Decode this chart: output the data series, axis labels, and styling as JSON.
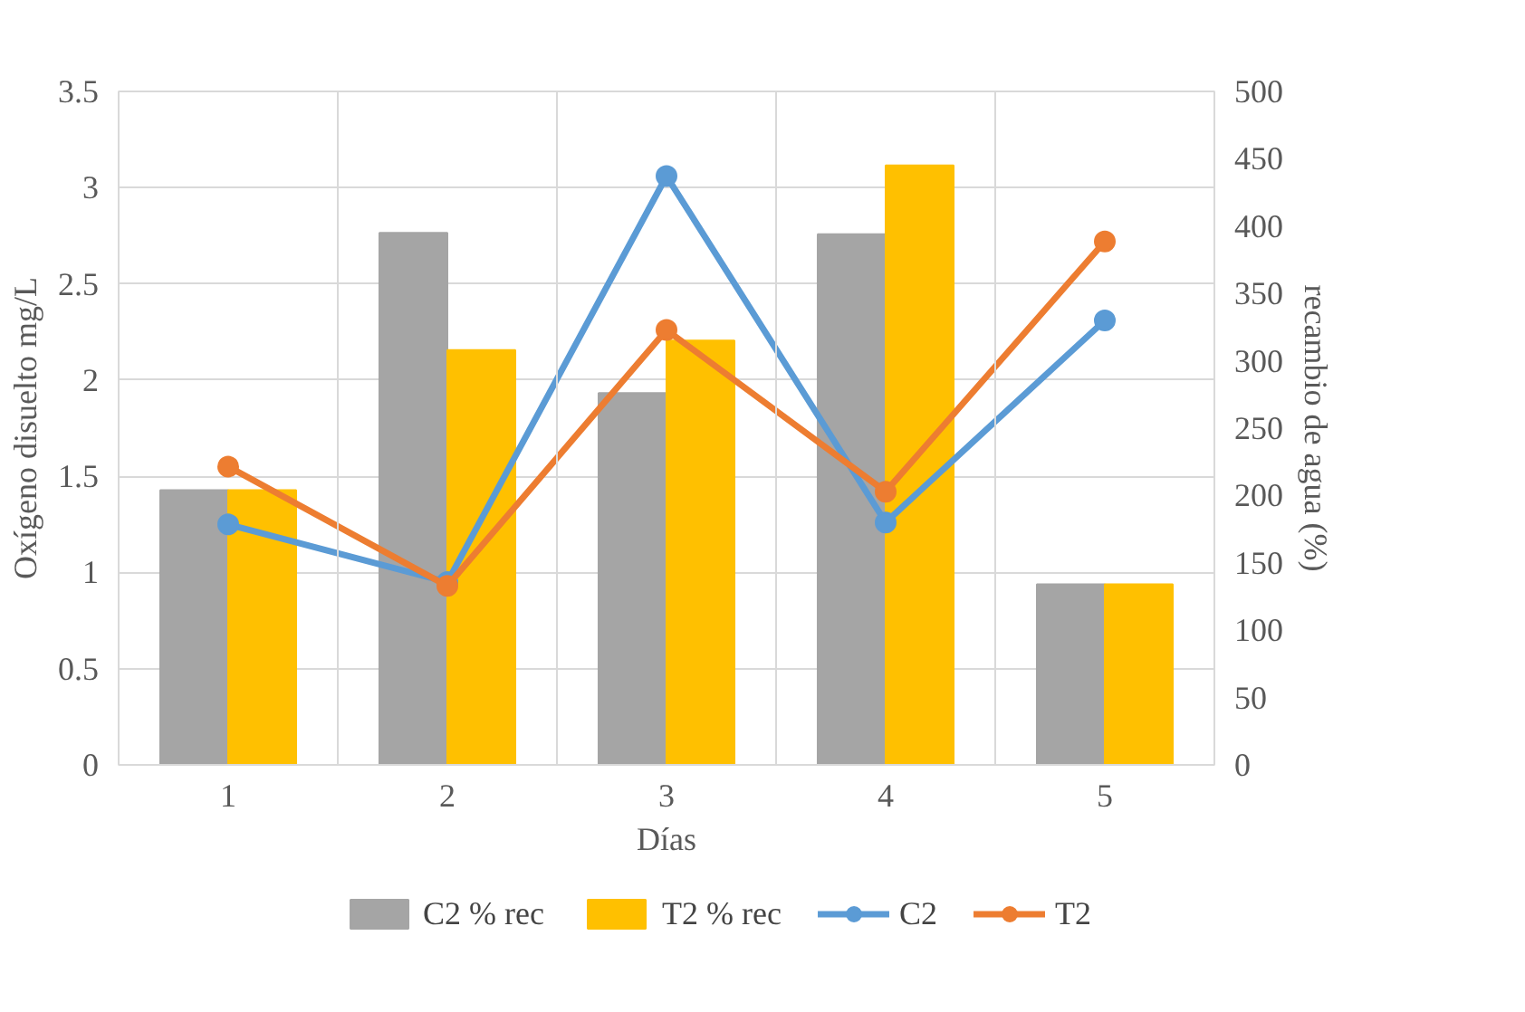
{
  "chart_data": {
    "type": "bar",
    "xlabel": "Días",
    "ylabel": "Oxígeno disuelto mg/L",
    "y2label": "recambio de agua (%)",
    "categories": [
      "1",
      "2",
      "3",
      "4",
      "5"
    ],
    "ylim": [
      0,
      3.5
    ],
    "yticks": [
      0,
      0.5,
      1,
      1.5,
      2,
      2.5,
      3,
      3.5
    ],
    "y2lim": [
      0,
      500
    ],
    "y2ticks": [
      0,
      50,
      100,
      150,
      200,
      250,
      300,
      350,
      400,
      450,
      500
    ],
    "grid": true,
    "legend": "bottom",
    "marker": "circle",
    "series": [
      {
        "name": "C2 % rec",
        "axis": "y2",
        "color": "#a5a5a5",
        "values": [
          204,
          395,
          276,
          394,
          134
        ]
      },
      {
        "name": "T2 % rec",
        "axis": "y2",
        "color": "#ffc000",
        "values": [
          204,
          308,
          315,
          445,
          134
        ]
      },
      {
        "name": "C2",
        "type": "line",
        "color": "#5b9bd5",
        "values": [
          1.25,
          0.95,
          3.06,
          1.26,
          2.31
        ]
      },
      {
        "name": "T2",
        "type": "line",
        "color": "#ed7d31",
        "values": [
          1.55,
          0.93,
          2.26,
          1.42,
          2.72
        ]
      }
    ]
  }
}
